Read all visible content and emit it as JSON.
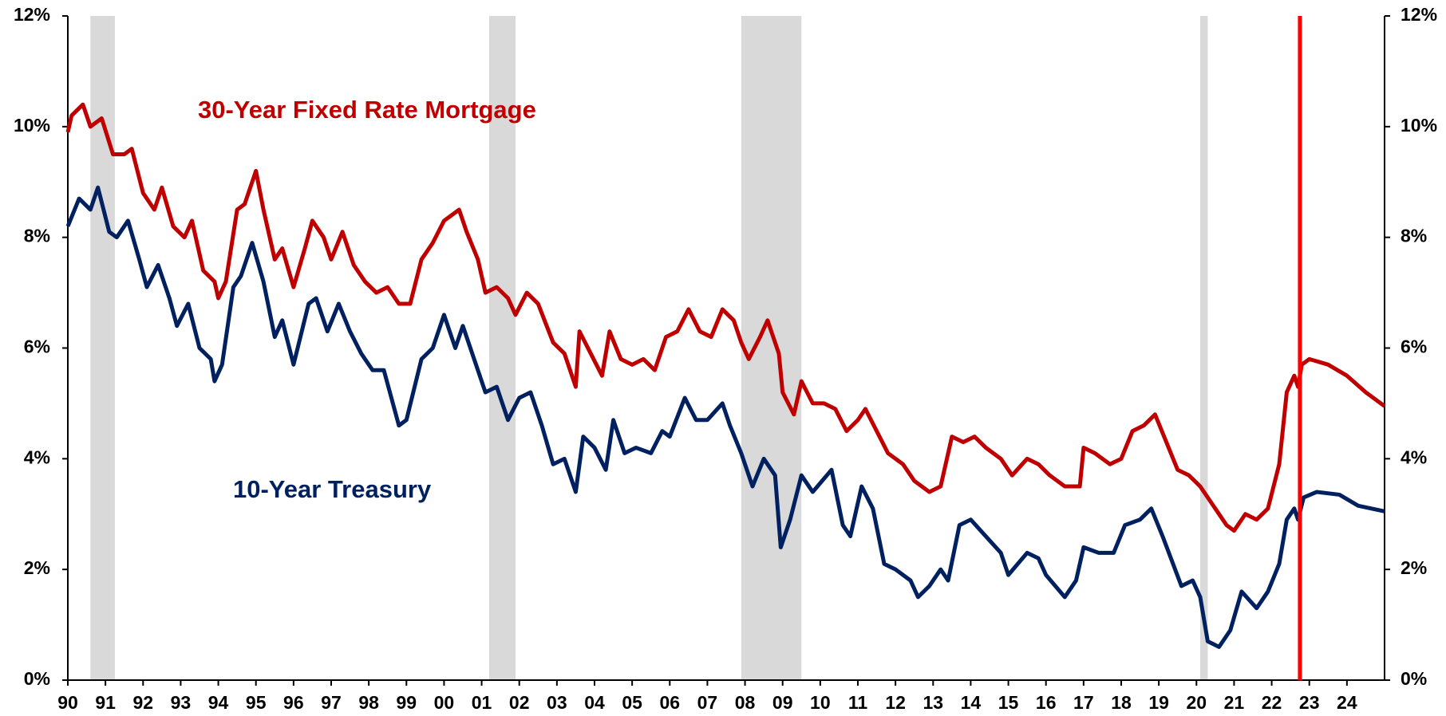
{
  "chart_data": {
    "type": "line",
    "annotations": [
      "30-Year Fixed Rate Mortgage",
      "10-Year Treasury"
    ],
    "xlim": [
      1990,
      2025
    ],
    "xticks": [
      {
        "value": 1990,
        "label": "90"
      },
      {
        "value": 1991,
        "label": "91"
      },
      {
        "value": 1992,
        "label": "92"
      },
      {
        "value": 1993,
        "label": "93"
      },
      {
        "value": 1994,
        "label": "94"
      },
      {
        "value": 1995,
        "label": "95"
      },
      {
        "value": 1996,
        "label": "96"
      },
      {
        "value": 1997,
        "label": "97"
      },
      {
        "value": 1998,
        "label": "98"
      },
      {
        "value": 1999,
        "label": "99"
      },
      {
        "value": 2000,
        "label": "00"
      },
      {
        "value": 2001,
        "label": "01"
      },
      {
        "value": 2002,
        "label": "02"
      },
      {
        "value": 2003,
        "label": "03"
      },
      {
        "value": 2004,
        "label": "04"
      },
      {
        "value": 2005,
        "label": "05"
      },
      {
        "value": 2006,
        "label": "06"
      },
      {
        "value": 2007,
        "label": "07"
      },
      {
        "value": 2008,
        "label": "08"
      },
      {
        "value": 2009,
        "label": "09"
      },
      {
        "value": 2010,
        "label": "10"
      },
      {
        "value": 2011,
        "label": "11"
      },
      {
        "value": 2012,
        "label": "12"
      },
      {
        "value": 2013,
        "label": "13"
      },
      {
        "value": 2014,
        "label": "14"
      },
      {
        "value": 2015,
        "label": "15"
      },
      {
        "value": 2016,
        "label": "16"
      },
      {
        "value": 2017,
        "label": "17"
      },
      {
        "value": 2018,
        "label": "18"
      },
      {
        "value": 2019,
        "label": "19"
      },
      {
        "value": 2020,
        "label": "20"
      },
      {
        "value": 2021,
        "label": "21"
      },
      {
        "value": 2022,
        "label": "22"
      },
      {
        "value": 2023,
        "label": "23"
      },
      {
        "value": 2024,
        "label": "24"
      }
    ],
    "ylim": [
      0,
      12
    ],
    "yticks": [
      {
        "value": 0,
        "label": "0%"
      },
      {
        "value": 2,
        "label": "2%"
      },
      {
        "value": 4,
        "label": "4%"
      },
      {
        "value": 6,
        "label": "6%"
      },
      {
        "value": 8,
        "label": "8%"
      },
      {
        "value": 10,
        "label": "10%"
      },
      {
        "value": 12,
        "label": "12%"
      }
    ],
    "y2lim": [
      0,
      12
    ],
    "y2ticks": [
      {
        "value": 0,
        "label": "0%"
      },
      {
        "value": 2,
        "label": "2%"
      },
      {
        "value": 4,
        "label": "4%"
      },
      {
        "value": 6,
        "label": "6%"
      },
      {
        "value": 8,
        "label": "8%"
      },
      {
        "value": 10,
        "label": "10%"
      },
      {
        "value": 12,
        "label": "12%"
      }
    ],
    "grid": false,
    "recessions": [
      [
        1990.6,
        1991.25
      ],
      [
        2001.2,
        2001.9
      ],
      [
        2007.9,
        2009.5
      ],
      [
        2020.1,
        2020.3
      ]
    ],
    "recession_color": "#d9d9d9",
    "marker_x": 2022.75,
    "marker_color": "#ff0000",
    "series": [
      {
        "name": "30-Year Fixed Rate Mortgage",
        "color": "#c00000",
        "x": [
          1990.0,
          1990.1,
          1990.4,
          1990.6,
          1990.9,
          1991.2,
          1991.5,
          1991.7,
          1992.0,
          1992.3,
          1992.5,
          1992.8,
          1993.1,
          1993.3,
          1993.6,
          1993.9,
          1994.0,
          1994.2,
          1994.5,
          1994.7,
          1995.0,
          1995.2,
          1995.5,
          1995.7,
          1996.0,
          1996.3,
          1996.5,
          1996.8,
          1997.0,
          1997.3,
          1997.6,
          1997.9,
          1998.2,
          1998.5,
          1998.8,
          1999.1,
          1999.4,
          1999.7,
          2000.0,
          2000.4,
          2000.6,
          2000.9,
          2001.1,
          2001.4,
          2001.7,
          2001.9,
          2002.2,
          2002.5,
          2002.9,
          2003.2,
          2003.5,
          2003.6,
          2003.9,
          2004.2,
          2004.4,
          2004.7,
          2005.0,
          2005.3,
          2005.6,
          2005.9,
          2006.2,
          2006.5,
          2006.8,
          2007.1,
          2007.4,
          2007.7,
          2007.9,
          2008.1,
          2008.4,
          2008.6,
          2008.9,
          2009.0,
          2009.3,
          2009.5,
          2009.8,
          2010.1,
          2010.4,
          2010.7,
          2011.0,
          2011.2,
          2011.5,
          2011.8,
          2012.2,
          2012.5,
          2012.9,
          2013.2,
          2013.5,
          2013.8,
          2014.1,
          2014.4,
          2014.8,
          2015.1,
          2015.5,
          2015.8,
          2016.1,
          2016.5,
          2016.9,
          2017.0,
          2017.3,
          2017.7,
          2018.0,
          2018.3,
          2018.6,
          2018.9,
          2019.2,
          2019.5,
          2019.8,
          2020.1,
          2020.4,
          2020.8,
          2021.0,
          2021.3,
          2021.6,
          2021.9,
          2022.2,
          2022.4,
          2022.6,
          2022.7,
          2022.8,
          2023.0,
          2023.5,
          2024.0,
          2024.5,
          2025.0
        ],
        "values": [
          9.9,
          10.2,
          10.4,
          10.0,
          10.15,
          9.5,
          9.5,
          9.6,
          8.8,
          8.5,
          8.9,
          8.2,
          8.0,
          8.3,
          7.4,
          7.2,
          6.9,
          7.2,
          8.5,
          8.6,
          9.2,
          8.5,
          7.6,
          7.8,
          7.1,
          7.8,
          8.3,
          8.0,
          7.6,
          8.1,
          7.5,
          7.2,
          7.0,
          7.1,
          6.8,
          6.8,
          7.6,
          7.9,
          8.3,
          8.5,
          8.1,
          7.6,
          7.0,
          7.1,
          6.9,
          6.6,
          7.0,
          6.8,
          6.1,
          5.9,
          5.3,
          6.3,
          5.9,
          5.5,
          6.3,
          5.8,
          5.7,
          5.8,
          5.6,
          6.2,
          6.3,
          6.7,
          6.3,
          6.2,
          6.7,
          6.5,
          6.1,
          5.8,
          6.2,
          6.5,
          5.9,
          5.2,
          4.8,
          5.4,
          5.0,
          5.0,
          4.9,
          4.5,
          4.7,
          4.9,
          4.5,
          4.1,
          3.9,
          3.6,
          3.4,
          3.5,
          4.4,
          4.3,
          4.4,
          4.2,
          4.0,
          3.7,
          4.0,
          3.9,
          3.7,
          3.5,
          3.5,
          4.2,
          4.1,
          3.9,
          4.0,
          4.5,
          4.6,
          4.8,
          4.3,
          3.8,
          3.7,
          3.5,
          3.2,
          2.8,
          2.7,
          3.0,
          2.9,
          3.1,
          3.9,
          5.2,
          5.5,
          5.3,
          5.7,
          5.8,
          5.7,
          5.5,
          5.2,
          4.95
        ]
      },
      {
        "name": "10-Year Treasury",
        "color": "#002060",
        "x": [
          1990.0,
          1990.3,
          1990.6,
          1990.8,
          1991.1,
          1991.3,
          1991.6,
          1991.9,
          1992.1,
          1992.4,
          1992.7,
          1992.9,
          1993.2,
          1993.5,
          1993.8,
          1993.9,
          1994.1,
          1994.4,
          1994.6,
          1994.9,
          1995.2,
          1995.5,
          1995.7,
          1996.0,
          1996.4,
          1996.6,
          1996.9,
          1997.2,
          1997.5,
          1997.8,
          1998.1,
          1998.4,
          1998.8,
          1999.0,
          1999.4,
          1999.7,
          2000.0,
          2000.3,
          2000.5,
          2000.9,
          2001.1,
          2001.4,
          2001.7,
          2002.0,
          2002.3,
          2002.6,
          2002.9,
          2003.2,
          2003.5,
          2003.7,
          2004.0,
          2004.3,
          2004.5,
          2004.8,
          2005.1,
          2005.5,
          2005.8,
          2006.0,
          2006.4,
          2006.7,
          2007.0,
          2007.4,
          2007.6,
          2007.9,
          2008.2,
          2008.5,
          2008.8,
          2008.95,
          2009.2,
          2009.5,
          2009.8,
          2010.3,
          2010.6,
          2010.8,
          2011.1,
          2011.4,
          2011.7,
          2012.0,
          2012.4,
          2012.6,
          2012.9,
          2013.2,
          2013.4,
          2013.7,
          2014.0,
          2014.4,
          2014.8,
          2015.0,
          2015.5,
          2015.8,
          2016.0,
          2016.5,
          2016.8,
          2017.0,
          2017.4,
          2017.8,
          2018.1,
          2018.5,
          2018.8,
          2019.1,
          2019.6,
          2019.9,
          2020.1,
          2020.3,
          2020.6,
          2020.9,
          2021.2,
          2021.6,
          2021.9,
          2022.2,
          2022.4,
          2022.6,
          2022.7,
          2022.85,
          2023.2,
          2023.8,
          2024.3,
          2025.0
        ],
        "values": [
          8.2,
          8.7,
          8.5,
          8.9,
          8.1,
          8.0,
          8.3,
          7.6,
          7.1,
          7.5,
          6.9,
          6.4,
          6.8,
          6.0,
          5.8,
          5.4,
          5.7,
          7.1,
          7.3,
          7.9,
          7.2,
          6.2,
          6.5,
          5.7,
          6.8,
          6.9,
          6.3,
          6.8,
          6.3,
          5.9,
          5.6,
          5.6,
          4.6,
          4.7,
          5.8,
          6.0,
          6.6,
          6.0,
          6.4,
          5.6,
          5.2,
          5.3,
          4.7,
          5.1,
          5.2,
          4.6,
          3.9,
          4.0,
          3.4,
          4.4,
          4.2,
          3.8,
          4.7,
          4.1,
          4.2,
          4.1,
          4.5,
          4.4,
          5.1,
          4.7,
          4.7,
          5.0,
          4.6,
          4.1,
          3.5,
          4.0,
          3.7,
          2.4,
          2.9,
          3.7,
          3.4,
          3.8,
          2.8,
          2.6,
          3.5,
          3.1,
          2.1,
          2.0,
          1.8,
          1.5,
          1.7,
          2.0,
          1.8,
          2.8,
          2.9,
          2.6,
          2.3,
          1.9,
          2.3,
          2.2,
          1.9,
          1.5,
          1.8,
          2.4,
          2.3,
          2.3,
          2.8,
          2.9,
          3.1,
          2.6,
          1.7,
          1.8,
          1.5,
          0.7,
          0.6,
          0.9,
          1.6,
          1.3,
          1.6,
          2.1,
          2.9,
          3.1,
          2.9,
          3.3,
          3.4,
          3.35,
          3.15,
          3.05
        ]
      }
    ]
  }
}
